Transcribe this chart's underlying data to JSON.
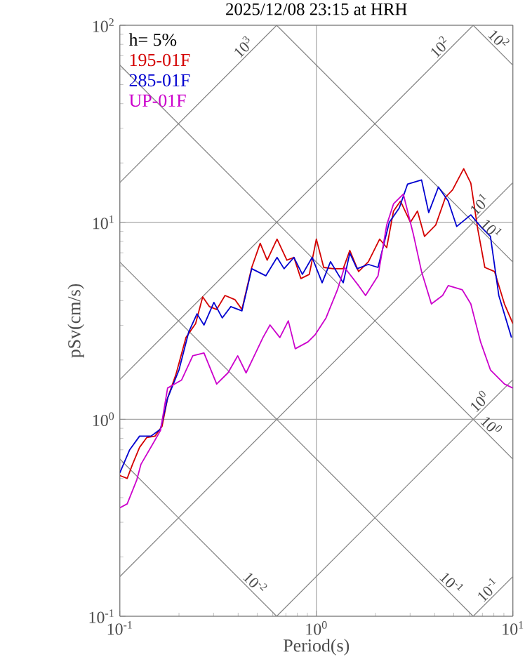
{
  "chart_data": {
    "type": "line",
    "title": "2025/12/08 23:15 at HRH",
    "xlabel": "Period(s)",
    "ylabel": "pSv(cm/s)",
    "log": "xy",
    "grid": true,
    "legend": "top left",
    "xlim": [
      0.1,
      10
    ],
    "ylim": [
      0.1,
      100
    ],
    "xticks": [
      {
        "value": 0.1,
        "label": "10$^{-1}$"
      },
      {
        "value": 1,
        "label": "10$^{0}$"
      },
      {
        "value": 10,
        "label": "10$^{1}$"
      }
    ],
    "yticks": [
      {
        "value": 0.1,
        "label": "10$^{-1}$"
      },
      {
        "value": 1,
        "label": "10$^{0}$"
      },
      {
        "value": 10,
        "label": "10$^{1}$"
      },
      {
        "value": 100,
        "label": "10$^{2}$"
      }
    ],
    "series": [
      {
        "name": "195-01F",
        "color": "#d40000",
        "x": [
          0.1,
          0.109,
          0.116,
          0.126,
          0.137,
          0.151,
          0.164,
          0.175,
          0.193,
          0.217,
          0.243,
          0.264,
          0.286,
          0.311,
          0.343,
          0.385,
          0.418,
          0.469,
          0.518,
          0.562,
          0.631,
          0.708,
          0.769,
          0.834,
          0.921,
          1.0,
          1.09,
          1.22,
          1.37,
          1.48,
          1.64,
          1.84,
          2.1,
          2.28,
          2.47,
          2.68,
          3.01,
          3.27,
          3.55,
          4.05,
          4.54,
          4.93,
          5.62,
          6.11,
          6.63,
          7.2,
          8.07,
          9.06,
          10
        ],
        "values": [
          0.518,
          0.501,
          0.59,
          0.72,
          0.807,
          0.821,
          0.921,
          1.28,
          1.69,
          2.6,
          3.06,
          4.18,
          3.73,
          3.61,
          4.25,
          4.05,
          3.61,
          5.9,
          7.82,
          6.42,
          8.21,
          6.42,
          6.63,
          5.18,
          5.44,
          8.21,
          5.9,
          5.81,
          5.81,
          7.2,
          5.62,
          6.31,
          8.21,
          7.44,
          11.4,
          12.8,
          10,
          11.4,
          8.48,
          9.68,
          13.4,
          14.6,
          18.7,
          15.8,
          9.21,
          5.9,
          5.62,
          3.85,
          3.06
        ]
      },
      {
        "name": "285-01F",
        "color": "#0000d0",
        "x": [
          0.1,
          0.112,
          0.126,
          0.144,
          0.161,
          0.175,
          0.2,
          0.224,
          0.247,
          0.268,
          0.301,
          0.332,
          0.367,
          0.418,
          0.469,
          0.553,
          0.631,
          0.685,
          0.769,
          0.849,
          0.952,
          1.07,
          1.18,
          1.37,
          1.48,
          1.61,
          1.84,
          2.06,
          2.35,
          2.64,
          2.91,
          3.43,
          3.73,
          4.18,
          4.69,
          5.18,
          6.11,
          6.85,
          7.69,
          8.48,
          9.84
        ],
        "values": [
          0.535,
          0.697,
          0.821,
          0.821,
          0.891,
          1.28,
          1.78,
          2.77,
          3.43,
          3.01,
          3.92,
          3.27,
          3.73,
          3.55,
          5.81,
          5.35,
          6.63,
          5.81,
          6.63,
          5.44,
          6.63,
          4.93,
          6.31,
          4.93,
          6.97,
          5.81,
          6.11,
          5.9,
          10,
          11.8,
          15.6,
          16.4,
          11.2,
          15.1,
          12.8,
          9.52,
          10.9,
          9.52,
          8.48,
          4.25,
          2.6
        ]
      },
      {
        "name": "UP-01F",
        "color": "#cc00cc",
        "x": [
          0.1,
          0.109,
          0.122,
          0.128,
          0.148,
          0.161,
          0.175,
          0.206,
          0.235,
          0.268,
          0.311,
          0.355,
          0.398,
          0.439,
          0.535,
          0.581,
          0.652,
          0.72,
          0.781,
          0.906,
          0.984,
          1.12,
          1.28,
          1.39,
          1.64,
          1.78,
          2.06,
          2.28,
          2.47,
          2.77,
          3.11,
          3.43,
          3.85,
          4.39,
          4.69,
          5.53,
          6.11,
          6.85,
          7.69,
          9.06,
          10
        ],
        "values": [
          0.355,
          0.372,
          0.493,
          0.59,
          0.757,
          0.877,
          1.44,
          1.58,
          2.1,
          2.17,
          1.51,
          1.72,
          2.1,
          1.72,
          2.6,
          3.01,
          2.6,
          3.16,
          2.28,
          2.47,
          2.68,
          3.27,
          4.54,
          5.9,
          4.77,
          4.25,
          5.35,
          9.68,
          12.4,
          13.9,
          8.77,
          5.62,
          3.85,
          4.25,
          4.77,
          4.54,
          3.85,
          2.47,
          1.78,
          1.51,
          1.44
        ]
      },
      {
        "color": "#808080",
        "x": [
          0.1,
          0.628
        ],
        "values": [
          15.9,
          100
        ]
      },
      {
        "color": "#808080",
        "x": [
          0.1,
          6.28
        ],
        "values": [
          1.59,
          100
        ]
      },
      {
        "color": "#808080",
        "x": [
          0.1,
          10
        ],
        "values": [
          0.159,
          15.9
        ]
      },
      {
        "color": "#808080",
        "x": [
          0.628,
          10
        ],
        "values": [
          0.1,
          1.59
        ]
      },
      {
        "color": "#808080",
        "x": [
          6.28,
          10
        ],
        "values": [
          0.1,
          0.159
        ]
      },
      {
        "color": "#808080",
        "x": [
          6.28,
          10
        ],
        "values": [
          100,
          62.8
        ]
      },
      {
        "color": "#808080",
        "x": [
          0.628,
          10
        ],
        "values": [
          100,
          6.28
        ]
      },
      {
        "color": "#808080",
        "x": [
          0.1,
          10
        ],
        "values": [
          62.8,
          0.628
        ]
      },
      {
        "color": "#808080",
        "x": [
          0.1,
          6.28
        ],
        "values": [
          6.28,
          0.1
        ]
      },
      {
        "color": "#808080",
        "x": [
          0.1,
          0.628
        ],
        "values": [
          0.628,
          0.1
        ]
      }
    ],
    "annotations": [
      "h= 5%",
      {
        "text": "10$^{3}$",
        "x": 0.455,
        "y": 72.4
      },
      {
        "text": "10$^{2}$",
        "x": 4.55,
        "y": 72.4
      },
      {
        "text": "10$^{1}$",
        "x": 7.24,
        "y": 11.5
      },
      {
        "text": "10$^{0}$",
        "x": 7.24,
        "y": 1.15
      },
      {
        "text": "10$^{-1}$",
        "x": 8.0,
        "y": 0.127
      },
      {
        "text": "10$^{2}$",
        "x": 7.9,
        "y": 79.5
      },
      {
        "text": "10$^{1}$",
        "x": 7.24,
        "y": 8.67
      },
      {
        "text": "10$^{0}$",
        "x": 7.24,
        "y": 0.867
      },
      {
        "text": "10$^{-1}$",
        "x": 4.55,
        "y": 0.138
      },
      {
        "text": "10$^{-2}$",
        "x": 0.455,
        "y": 0.138
      }
    ]
  }
}
